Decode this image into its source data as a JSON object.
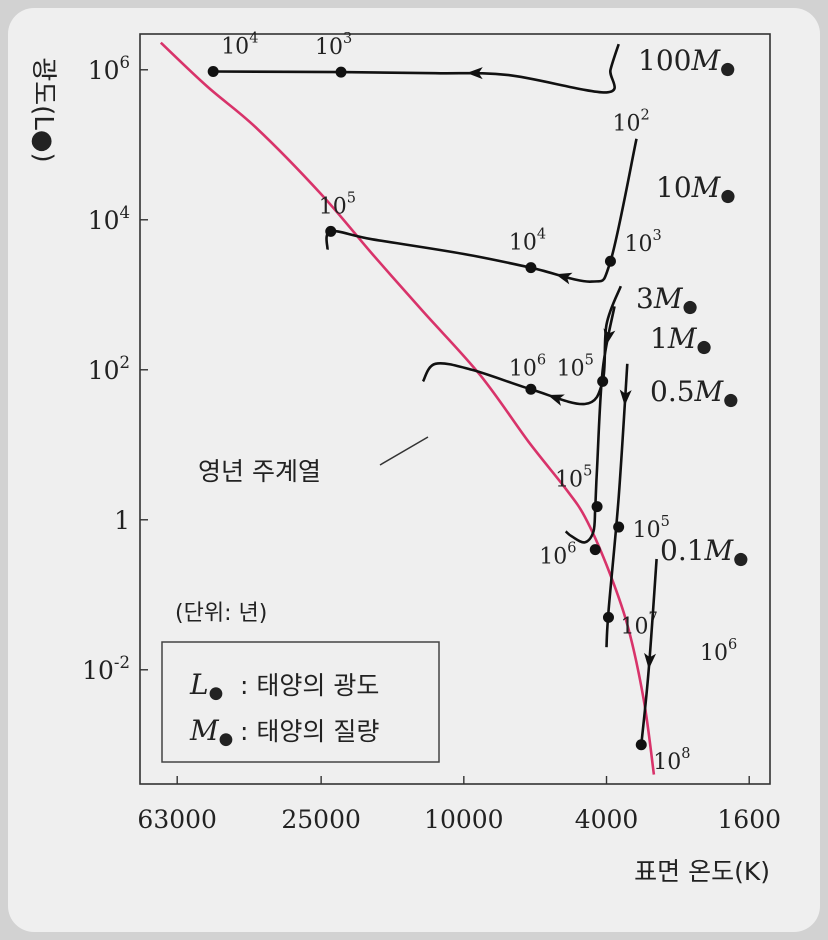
{
  "chart_data": {
    "type": "line",
    "xlabel": "표면 온도(K)",
    "ylabel": "광도(L●)",
    "x_scale": "log",
    "x_reversed": true,
    "y_scale": "log",
    "xlim": [
      80000,
      1400
    ],
    "ylim": [
      0.0003,
      3000000
    ],
    "x_ticks": [
      {
        "value": 63000,
        "label": "63000"
      },
      {
        "value": 25000,
        "label": "25000"
      },
      {
        "value": 10000,
        "label": "10000"
      },
      {
        "value": 4000,
        "label": "4000"
      },
      {
        "value": 1600,
        "label": "1600"
      }
    ],
    "y_ticks": [
      {
        "value": 1000000,
        "label": "10^6"
      },
      {
        "value": 10000,
        "label": "10^4"
      },
      {
        "value": 100,
        "label": "10^2"
      },
      {
        "value": 1,
        "label": "1"
      },
      {
        "value": 0.01,
        "label": "10^-2"
      }
    ],
    "main_sequence": {
      "name": "영년 주계열",
      "points": [
        [
          70000,
          2300000
        ],
        [
          52000,
          600000
        ],
        [
          38000,
          170000
        ],
        [
          25000,
          22000
        ],
        [
          18000,
          3500
        ],
        [
          13000,
          600
        ],
        [
          9000,
          85
        ],
        [
          6600,
          11
        ],
        [
          5200,
          2.6
        ],
        [
          4600,
          1.1
        ],
        [
          4000,
          0.25
        ],
        [
          3500,
          0.04
        ],
        [
          3150,
          0.004
        ],
        [
          2950,
          0.0004
        ]
      ]
    },
    "series": [
      {
        "name": "100M●",
        "points": [
          [
            3700,
            2200000
          ],
          [
            3900,
            1000000
          ],
          [
            4000,
            500000
          ],
          [
            7500,
            850000
          ],
          [
            12000,
            900000
          ],
          [
            22000,
            930000
          ],
          [
            50000,
            950000
          ]
        ],
        "markers": [
          [
            50000,
            950000,
            "10^4"
          ],
          [
            22000,
            930000,
            "10^3"
          ]
        ],
        "start_label": "10^2"
      },
      {
        "name": "10M●",
        "points": [
          [
            3300,
            120000
          ],
          [
            3900,
            2800
          ],
          [
            4400,
            1500
          ],
          [
            6500,
            2300
          ],
          [
            10000,
            3500
          ],
          [
            18000,
            5500
          ],
          [
            23500,
            7000
          ],
          [
            24000,
            4000
          ]
        ],
        "markers": [
          [
            3900,
            2800,
            "10^3"
          ],
          [
            6500,
            2300,
            "10^4"
          ],
          [
            23500,
            7000,
            "10^5"
          ]
        ]
      },
      {
        "name": "3M●",
        "points": [
          [
            3650,
            1300
          ],
          [
            4000,
            400
          ],
          [
            4100,
            70
          ],
          [
            4600,
            35
          ],
          [
            6500,
            55
          ],
          [
            9500,
            100
          ],
          [
            12000,
            120
          ],
          [
            13000,
            70
          ]
        ],
        "markers": [
          [
            4100,
            70,
            "10^5"
          ],
          [
            6500,
            55,
            "10^6"
          ]
        ]
      },
      {
        "name": "1M●",
        "points": [
          [
            3800,
            700
          ],
          [
            4100,
            100
          ],
          [
            4250,
            5
          ],
          [
            4300,
            1.5
          ],
          [
            4350,
            0.7
          ],
          [
            4600,
            0.5
          ],
          [
            5000,
            0.6
          ],
          [
            5200,
            0.7
          ]
        ],
        "markers": [
          [
            4250,
            1.5,
            "10^5"
          ],
          [
            4300,
            0.4,
            "10^6"
          ]
        ]
      },
      {
        "name": "0.5M●",
        "points": [
          [
            3500,
            120
          ],
          [
            3700,
            2
          ],
          [
            3950,
            0.06
          ],
          [
            4000,
            0.02
          ]
        ],
        "markers": [
          [
            3700,
            0.8,
            "10^5"
          ],
          [
            3950,
            0.05,
            "10^7"
          ]
        ]
      },
      {
        "name": "0.1M●",
        "points": [
          [
            2900,
            0.3
          ],
          [
            3050,
            0.01
          ],
          [
            3200,
            0.001
          ]
        ],
        "markers": [
          [
            3200,
            0.001,
            "10^8"
          ]
        ],
        "mid_label": "10^6"
      }
    ]
  },
  "unit_note": "(단위: 년)",
  "legend": [
    {
      "symbol": "L●",
      "text": ": 태양의 광도"
    },
    {
      "symbol": "M●",
      "text": ": 태양의 질량"
    }
  ],
  "colors": {
    "main_sequence": "#d8336a",
    "tracks": "#111111",
    "background": "#efefef",
    "frame_bg": "#d2d2d2"
  }
}
